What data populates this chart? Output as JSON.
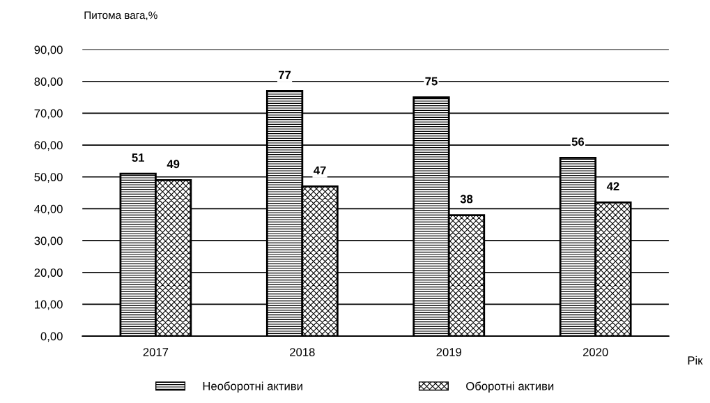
{
  "chart_data": {
    "type": "bar",
    "ylabel": "Питома вага,%",
    "xlabel": "Рік",
    "categories": [
      "2017",
      "2018",
      "2019",
      "2020"
    ],
    "series": [
      {
        "name": "Необоротні активи",
        "color": "#000000",
        "values": [
          51,
          77,
          75,
          56
        ]
      },
      {
        "name": "Оборотні активи",
        "color": "#000000",
        "values": [
          49,
          47,
          38,
          42
        ]
      }
    ],
    "ylim": [
      0,
      90
    ],
    "yticks": [
      {
        "value": 0,
        "label": "0,00"
      },
      {
        "value": 10,
        "label": "10,00"
      },
      {
        "value": 20,
        "label": "20,00"
      },
      {
        "value": 30,
        "label": "30,00"
      },
      {
        "value": 40,
        "label": "40,00"
      },
      {
        "value": 50,
        "label": "50,00"
      },
      {
        "value": 60,
        "label": "60,00"
      },
      {
        "value": 70,
        "label": "70,00"
      },
      {
        "value": 80,
        "label": "80,00"
      },
      {
        "value": 90,
        "label": "90,00"
      }
    ],
    "grid": "y",
    "legend": "bottom",
    "data_labels": true
  }
}
